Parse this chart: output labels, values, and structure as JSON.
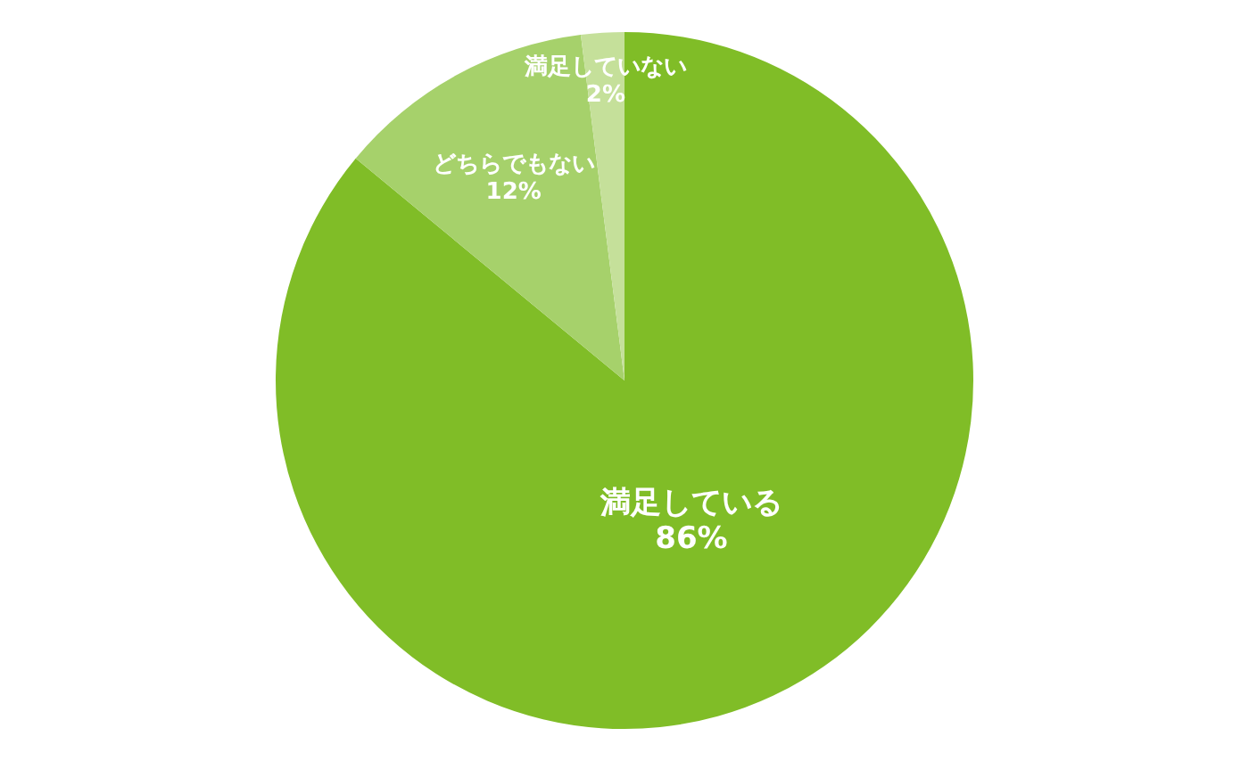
{
  "chart_data": {
    "type": "pie",
    "categories": [
      "満足している",
      "どちらでもない",
      "満足していない"
    ],
    "values": [
      86,
      12,
      2
    ],
    "colors": [
      "#80bd27",
      "#a6d16b",
      "#c5e09a"
    ],
    "value_labels": [
      "86%",
      "12%",
      "2%"
    ],
    "legend": false
  }
}
